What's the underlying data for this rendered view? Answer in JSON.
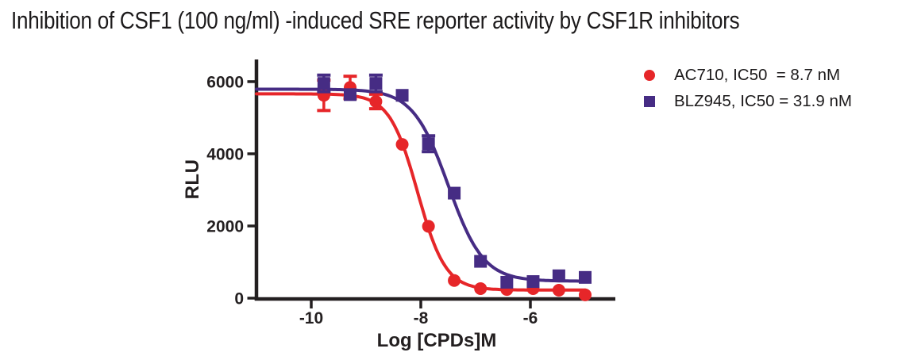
{
  "colors": {
    "ink": "#231f20",
    "red": "#e62629",
    "purple": "#462c84",
    "background": "#ffffff"
  },
  "chart_data": {
    "type": "scatter",
    "title": "Inhibition of CSF1 (100 ng/ml) -induced SRE reporter activity by CSF1R inhibitors",
    "xlabel": "Log [CPDs]M",
    "ylabel": "RLU",
    "xlim": [
      -11,
      -4.45
    ],
    "ylim": [
      0,
      6600
    ],
    "x_ticks": [
      -10,
      -8,
      -6
    ],
    "y_ticks": [
      0,
      2000,
      4000,
      6000
    ],
    "grid": false,
    "legend_position": "top-right",
    "x": [
      -9.77,
      -9.29,
      -8.82,
      -8.34,
      -7.86,
      -7.39,
      -6.91,
      -6.43,
      -5.95,
      -5.48,
      -5.0
    ],
    "series": [
      {
        "id": "ac710",
        "name": "AC710, IC50  = 8.7 nM",
        "compound": "AC710",
        "ic50_nM": 8.7,
        "marker": "circle",
        "color": "#e62629",
        "values": [
          5620,
          5840,
          5450,
          4260,
          1990,
          490,
          265,
          240,
          265,
          220,
          90
        ],
        "errors": [
          420,
          310,
          200,
          0,
          0,
          0,
          0,
          0,
          0,
          0,
          0
        ],
        "fit": {
          "top": 5660,
          "bottom": 225,
          "logIC50": -8.06,
          "hill": 1.7
        }
      },
      {
        "id": "blz945",
        "name": "BLZ945, IC50 = 31.9 nM",
        "compound": "BLZ945",
        "ic50_nM": 31.9,
        "marker": "square",
        "color": "#462c84",
        "values": [
          5950,
          5640,
          5950,
          5620,
          4280,
          2910,
          1020,
          440,
          460,
          620,
          575
        ],
        "errors": [
          230,
          0,
          230,
          0,
          220,
          0,
          0,
          0,
          0,
          0,
          0
        ],
        "fit": {
          "top": 5790,
          "bottom": 470,
          "logIC50": -7.5,
          "hill": 1.35
        }
      }
    ]
  }
}
